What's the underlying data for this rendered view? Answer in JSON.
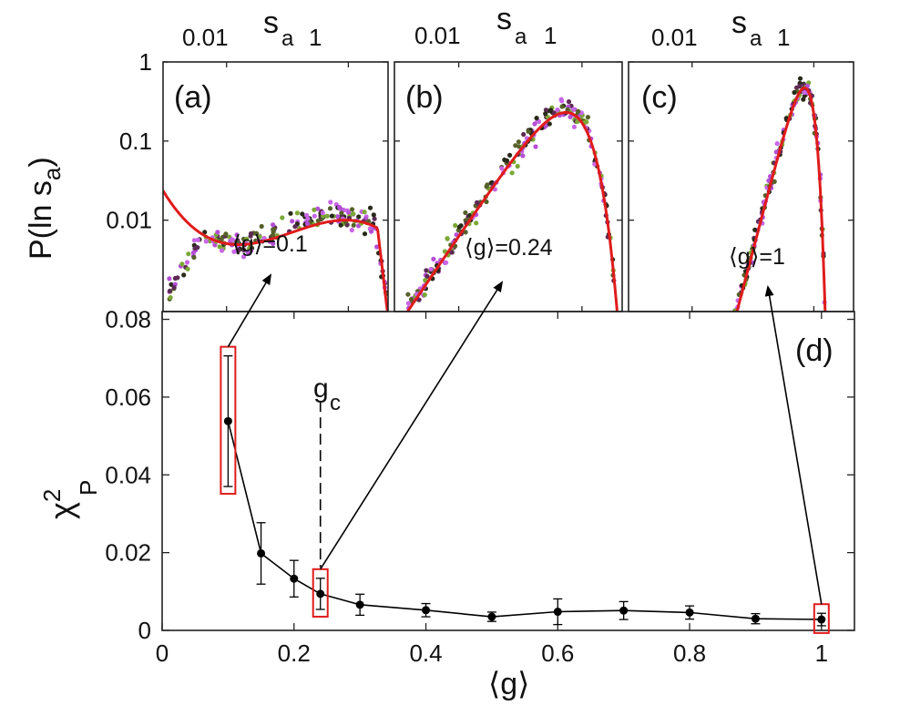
{
  "chart_data": [
    {
      "id": "a",
      "type": "scatter",
      "panel_label": "(a)",
      "annotation": "⟨g⟩=0.1",
      "g_value": 0.1,
      "top_axis_label": "s",
      "top_axis_sub": "a",
      "top_ticks": [
        "0.01",
        "1"
      ],
      "ylabel": "P(ln s",
      "ylabel_sub": "a",
      "ylabel_tail": ")",
      "yscale": "log",
      "ylim": [
        0.0007,
        1
      ],
      "yticks": [
        {
          "v": 0.01,
          "label": "0.01"
        },
        {
          "v": 0.1,
          "label": "0.1"
        },
        {
          "v": 1,
          "label": "1"
        }
      ],
      "xlim": [
        -7,
        1.5
      ],
      "fit_type": "cubic",
      "fit_coeffs": [
        -2.0,
        -0.0127,
        -0.06,
        -0.0094
      ],
      "fit_x_range": [
        -7,
        1.5
      ],
      "scatter_center": -1.6,
      "scatter_width": 3.3,
      "scatter_peak": 0.19,
      "scatter_x_range": [
        -6.8,
        1.45
      ]
    },
    {
      "id": "b",
      "type": "scatter",
      "panel_label": "(b)",
      "annotation": "⟨g⟩=0.24",
      "g_value": 0.24,
      "top_axis_label": "s",
      "top_axis_sub": "a",
      "top_ticks": [
        "0.01",
        "1"
      ],
      "yscale": "log",
      "ylim": [
        0.0007,
        1
      ],
      "xlim": [
        -7,
        1.5
      ],
      "fit_type": "gumbel",
      "fit_peak": 0.23,
      "fit_mode": -0.6,
      "fit_scale": 0.87,
      "fit_x_range": [
        -7,
        1.5
      ],
      "scatter_center": -0.6,
      "scatter_width": 0.87,
      "scatter_peak": 0.24,
      "scatter_x_range": [
        -6.5,
        1.4
      ]
    },
    {
      "id": "c",
      "type": "scatter",
      "panel_label": "(c)",
      "annotation": "⟨g⟩=1",
      "g_value": 1.0,
      "top_axis_label": "s",
      "top_axis_sub": "a",
      "top_ticks": [
        "0.01",
        "1"
      ],
      "yscale": "log",
      "ylim": [
        0.0007,
        1
      ],
      "xlim": [
        -7,
        1.5
      ],
      "fit_type": "gumbel",
      "fit_peak": 0.47,
      "fit_mode": -0.35,
      "fit_scale": 0.34,
      "fit_x_range": [
        -4,
        0.78
      ],
      "scatter_center": -0.35,
      "scatter_width": 0.34,
      "scatter_peak": 0.5,
      "scatter_x_range": [
        -3.8,
        0.9
      ]
    },
    {
      "id": "d",
      "type": "line",
      "panel_label": "(d)",
      "xlabel": "⟨g⟩",
      "ylabel": "χ",
      "ylabel_sup": "2",
      "ylabel_sub": "P",
      "xlim": [
        0,
        1.05
      ],
      "ylim": [
        0,
        0.082
      ],
      "xticks": [
        {
          "v": 0,
          "label": "0"
        },
        {
          "v": 0.2,
          "label": "0.2"
        },
        {
          "v": 0.4,
          "label": "0.4"
        },
        {
          "v": 0.6,
          "label": "0.6"
        },
        {
          "v": 0.8,
          "label": "0.8"
        },
        {
          "v": 1,
          "label": "1"
        }
      ],
      "yticks": [
        {
          "v": 0,
          "label": "0"
        },
        {
          "v": 0.02,
          "label": "0.02"
        },
        {
          "v": 0.04,
          "label": "0.04"
        },
        {
          "v": 0.06,
          "label": "0.06"
        },
        {
          "v": 0.08,
          "label": "0.08"
        }
      ],
      "x": [
        0.1,
        0.15,
        0.2,
        0.24,
        0.3,
        0.4,
        0.5,
        0.6,
        0.7,
        0.8,
        0.9,
        1.0
      ],
      "y": [
        0.0538,
        0.0198,
        0.0133,
        0.0094,
        0.0066,
        0.0052,
        0.0035,
        0.0048,
        0.0051,
        0.0046,
        0.003,
        0.0028
      ],
      "err": [
        0.0168,
        0.0079,
        0.0047,
        0.004,
        0.0027,
        0.0017,
        0.0012,
        0.0033,
        0.0023,
        0.0017,
        0.0013,
        0.0016
      ],
      "highlighted_x": [
        0.1,
        0.24,
        1.0
      ],
      "gc_label": "g",
      "gc_sub": "c",
      "gc_x": 0.24
    }
  ],
  "colors": {
    "fit": "#e01b1b",
    "highlight_box": "#e01b1b",
    "scatter": [
      "#2a2a1c",
      "#5c2a55",
      "#7aa835",
      "#b54fd6",
      "#c866e8",
      "#56612a"
    ],
    "line": "#000000"
  }
}
